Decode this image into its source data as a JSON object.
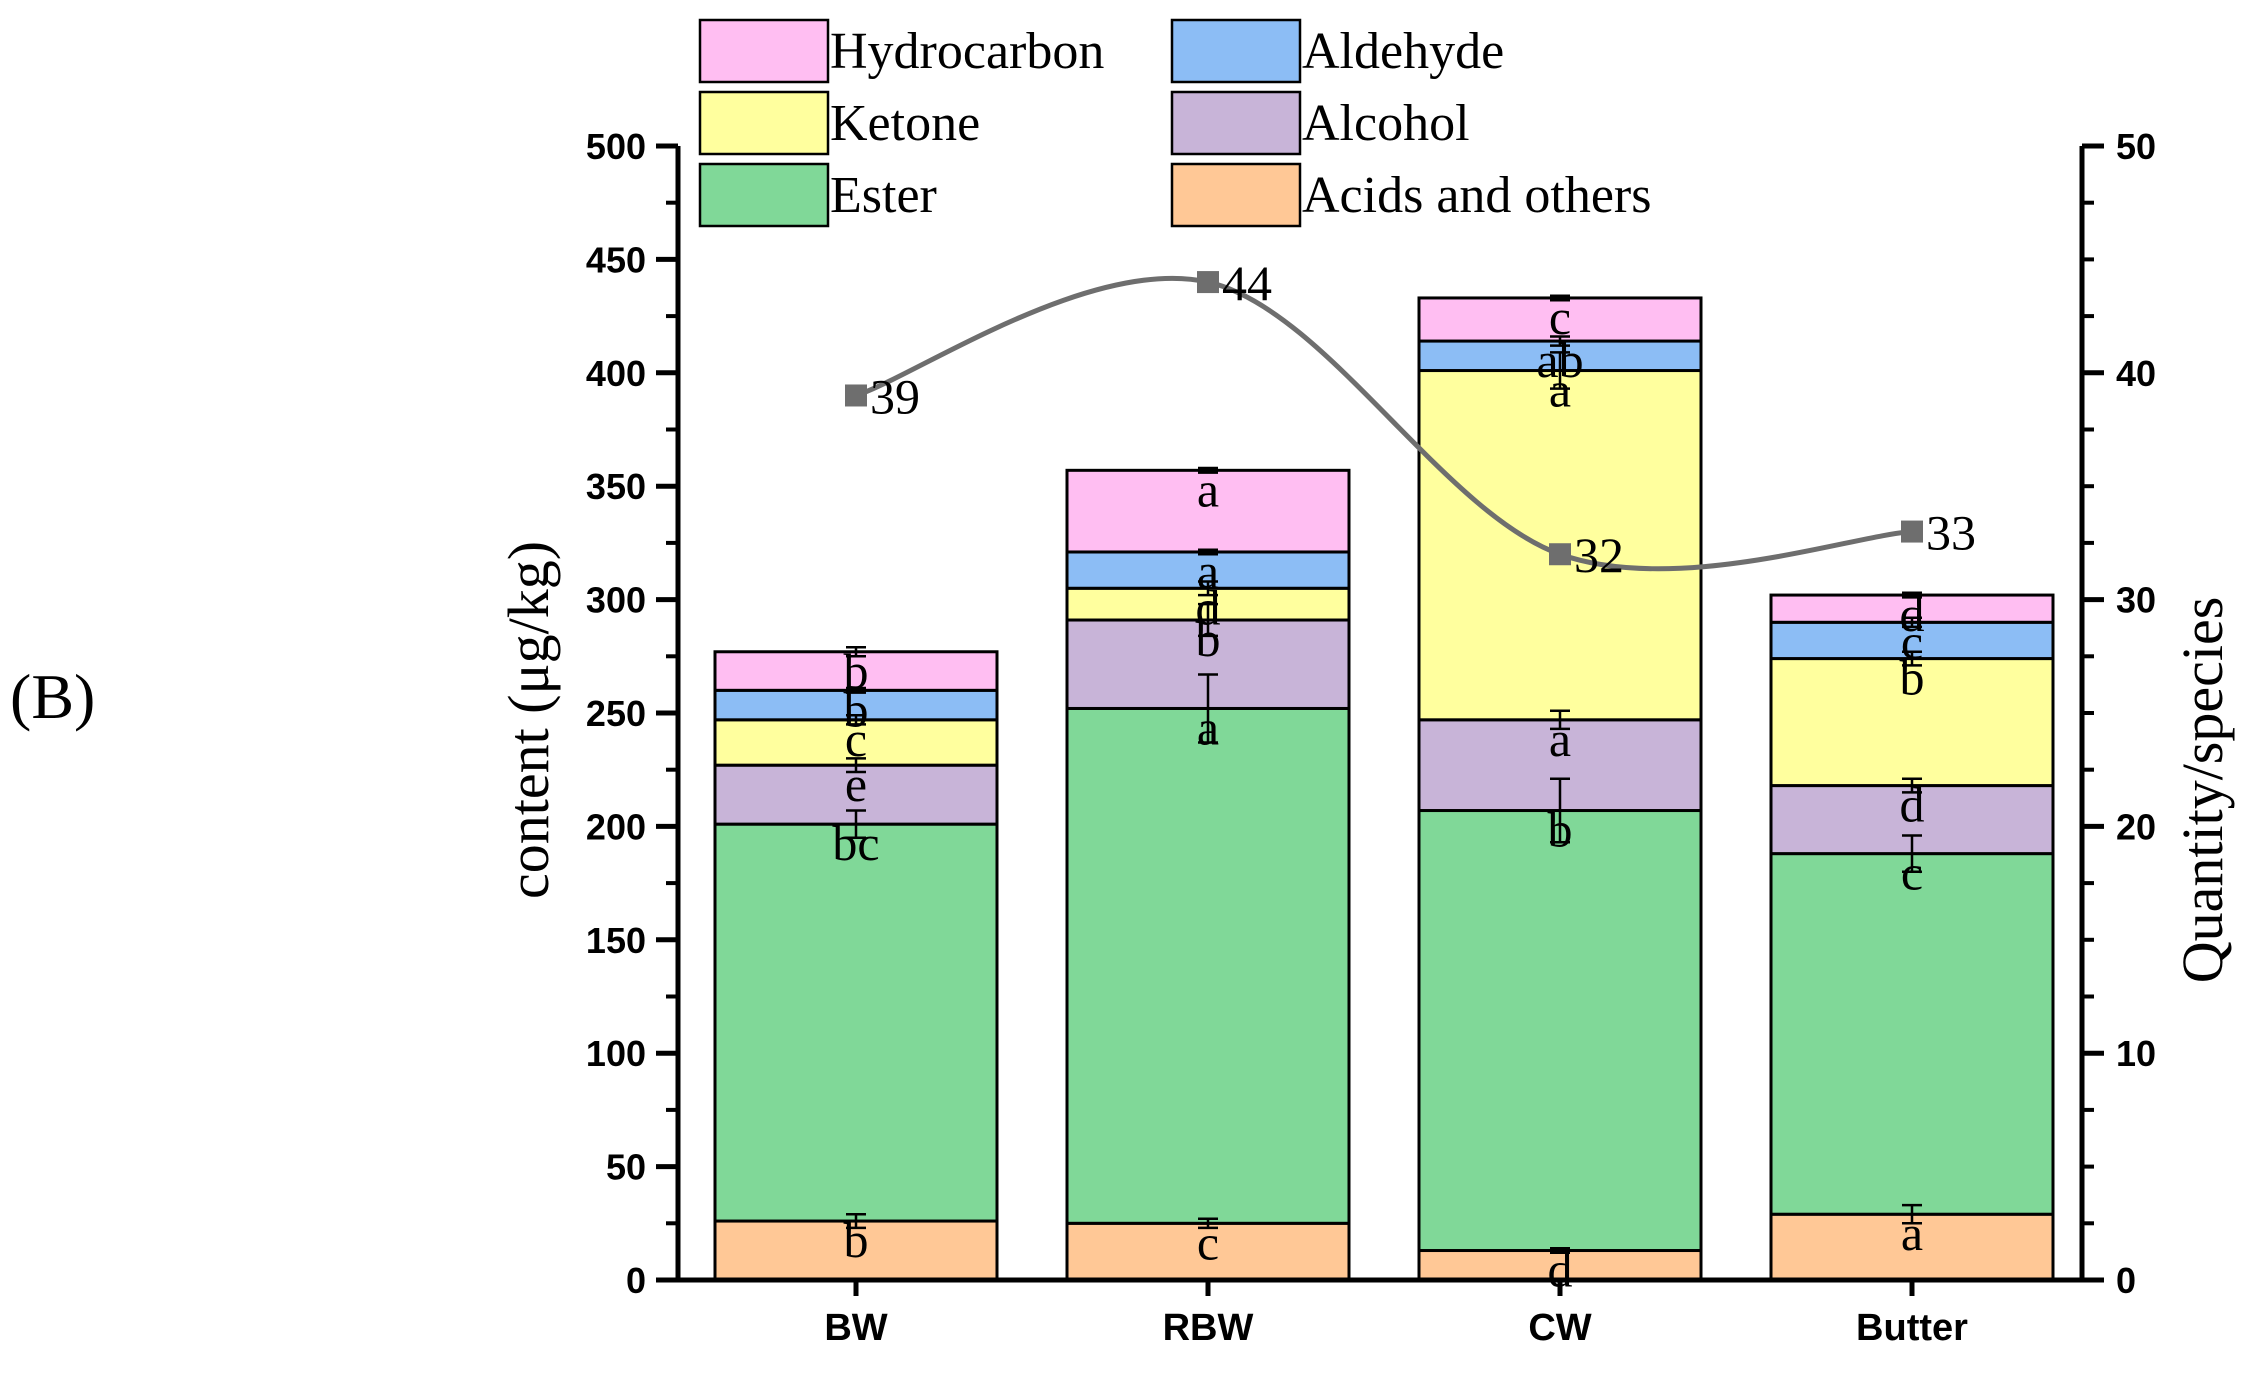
{
  "panel_label": "(B)",
  "chart_data": {
    "type": "bar",
    "stacked": true,
    "categories": [
      "BW",
      "RBW",
      "CW",
      "Butter"
    ],
    "ylabel": "content (μg/kg)",
    "ylim": [
      0,
      500
    ],
    "yticks": [
      0,
      50,
      100,
      150,
      200,
      250,
      300,
      350,
      400,
      450,
      500
    ],
    "y2label": "Quantity/species",
    "y2lim": [
      0,
      50
    ],
    "y2ticks": [
      0,
      10,
      20,
      30,
      40,
      50
    ],
    "series": [
      {
        "name": "Acids and others",
        "color": "#FFC896",
        "values": [
          26,
          25,
          13,
          29
        ],
        "errors": [
          3,
          2,
          1,
          4
        ],
        "labels": [
          "b",
          "c",
          "d",
          "a"
        ]
      },
      {
        "name": "Ester",
        "color": "#80D898",
        "values": [
          175,
          227,
          194,
          159
        ],
        "errors": [
          6,
          15,
          14,
          8
        ],
        "labels": [
          "bc",
          "a",
          "b",
          "c"
        ]
      },
      {
        "name": "Alcohol",
        "color": "#C8B4D8",
        "values": [
          26,
          39,
          40,
          30
        ],
        "errors": [
          3,
          7,
          4,
          3
        ],
        "labels": [
          "e",
          "b",
          "a",
          "d"
        ]
      },
      {
        "name": "Ketone",
        "color": "#FFFF9E",
        "values": [
          20,
          14,
          154,
          56
        ],
        "errors": [
          2,
          3,
          8,
          3
        ],
        "labels": [
          "c",
          "d",
          "a",
          "b"
        ]
      },
      {
        "name": "Aldehyde",
        "color": "#8CBDF5",
        "values": [
          13,
          16,
          13,
          16
        ],
        "errors": [
          1,
          1,
          2,
          2
        ],
        "labels": [
          "b",
          "a",
          "ab",
          "c"
        ]
      },
      {
        "name": "Hydrocarbon",
        "color": "#FFBEF2",
        "values": [
          17,
          36,
          19,
          12
        ],
        "errors": [
          2,
          1,
          1,
          1
        ],
        "labels": [
          "b",
          "a",
          "c",
          "d"
        ]
      }
    ],
    "line": {
      "name": "Quantity/species",
      "axis": "right",
      "color": "#6E6E6E",
      "values": [
        39,
        44,
        32,
        33
      ],
      "labels": [
        "39",
        "44",
        "32",
        "33"
      ]
    },
    "legend": {
      "placement": "top",
      "entries": [
        "Hydrocarbon",
        "Aldehyde",
        "Ketone",
        "Alcohol",
        "Ester",
        "Acids and others"
      ]
    }
  }
}
